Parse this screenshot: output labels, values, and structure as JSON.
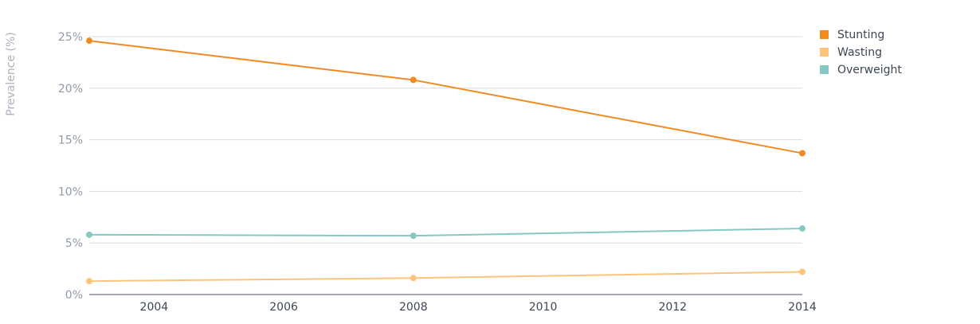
{
  "chart_data": {
    "type": "line",
    "title": "",
    "xlabel": "",
    "ylabel": "Prevalence (%)",
    "x": [
      2003,
      2008,
      2014
    ],
    "xlim": [
      2003,
      2014
    ],
    "xticks": [
      2004,
      2006,
      2008,
      2010,
      2012,
      2014
    ],
    "ylim": [
      0,
      25
    ],
    "yticks": [
      0,
      5,
      10,
      15,
      20,
      25
    ],
    "ytick_labels": [
      "0%",
      "5%",
      "10%",
      "15%",
      "20%",
      "25%"
    ],
    "grid": true,
    "legend_position": "top-right",
    "series": [
      {
        "name": "Stunting",
        "color": "#f28a21",
        "values": [
          24.6,
          20.8,
          13.7
        ]
      },
      {
        "name": "Wasting",
        "color": "#fcc57b",
        "values": [
          1.3,
          1.6,
          2.2
        ]
      },
      {
        "name": "Overweight",
        "color": "#86c8c5",
        "values": [
          5.8,
          5.7,
          6.4
        ]
      }
    ]
  }
}
